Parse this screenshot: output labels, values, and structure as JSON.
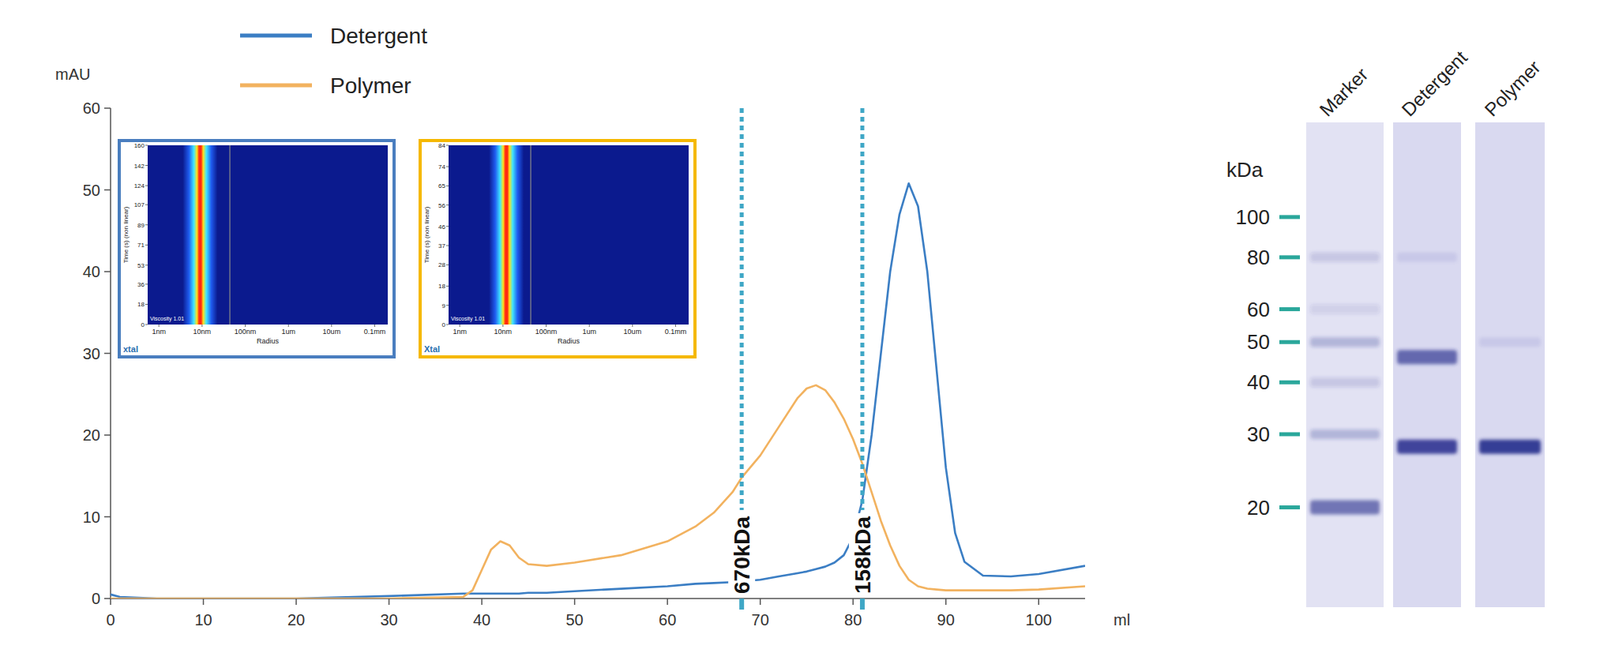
{
  "chart_data": {
    "type": "line",
    "x": [
      0,
      1,
      5,
      10,
      20,
      30,
      38,
      39,
      40,
      41,
      42,
      43,
      44,
      45,
      47,
      50,
      55,
      60,
      63,
      65,
      67,
      68,
      70,
      72,
      74,
      75,
      76,
      77,
      78,
      79,
      80,
      81,
      82,
      83,
      84,
      85,
      86,
      87,
      88,
      89,
      90,
      91,
      92,
      94,
      97,
      100,
      105
    ],
    "xlim": [
      0,
      105
    ],
    "xticks": [
      0,
      10,
      20,
      30,
      40,
      50,
      60,
      70,
      80,
      90,
      100
    ],
    "ylim": [
      0,
      60
    ],
    "yticks": [
      0,
      10,
      20,
      30,
      40,
      50,
      60
    ],
    "x_label": "ml",
    "y_label": "mAU",
    "legend": "top-left",
    "series": [
      {
        "name": "Detergent",
        "color": "#3b7ec4",
        "values": [
          0.5,
          0.2,
          0,
          0,
          0,
          0.3,
          0.6,
          0.6,
          0.6,
          0.6,
          0.6,
          0.6,
          0.6,
          0.7,
          0.7,
          0.9,
          1.2,
          1.5,
          1.8,
          1.9,
          2,
          2.1,
          2.3,
          2.7,
          3.1,
          3.3,
          3.6,
          3.9,
          4.4,
          5.3,
          7.5,
          12,
          20,
          30,
          40,
          47,
          50.8,
          48,
          40,
          28,
          16,
          8,
          4.5,
          2.8,
          2.7,
          3,
          4
        ]
      },
      {
        "name": "Polymer",
        "color": "#f2b25f",
        "values": [
          0,
          0,
          0,
          0,
          0,
          0,
          0.2,
          1,
          3.5,
          6,
          7,
          6.5,
          5,
          4.2,
          4,
          4.4,
          5.3,
          7,
          8.8,
          10.5,
          13,
          14.8,
          17.5,
          21,
          24.5,
          25.7,
          26.1,
          25.5,
          24,
          22,
          19.5,
          16.5,
          13,
          9.5,
          6.5,
          4,
          2.3,
          1.5,
          1.2,
          1.1,
          1,
          1,
          1,
          1,
          1,
          1.1,
          1.5
        ]
      }
    ],
    "annotations": [
      {
        "x": 68,
        "label": "670kDa",
        "color": "#3fa7c6"
      },
      {
        "x": 81,
        "label": "158kDa",
        "color": "#3fa7c6"
      }
    ]
  },
  "dls_insets": [
    {
      "color": "#4a7ebf",
      "y_label": "Time (s) (non linear)",
      "x_label": "Radius",
      "log": "x",
      "ylim": [
        0,
        160
      ],
      "yticks": [
        0,
        18,
        36,
        53,
        71,
        89,
        107,
        124,
        142,
        160
      ],
      "xlim": [
        0.55,
        200000
      ],
      "xticks": [
        {
          "value": 1,
          "label": "1nm"
        },
        {
          "value": 10,
          "label": "10nm"
        },
        {
          "value": 100,
          "label": "100nm"
        },
        {
          "value": 1000,
          "label": "1um"
        },
        {
          "value": 10000,
          "label": "10um"
        },
        {
          "value": 100000,
          "label": "0.1mm"
        }
      ],
      "peak_radius_nm": 9,
      "cutoff_radius_nm": 44,
      "note_text": "Viscosity 1.01",
      "logo": "xtal"
    },
    {
      "color": "#f5b800",
      "y_label": "Time (s) (non linear)",
      "x_label": "Radius",
      "log": "x",
      "ylim": [
        0,
        84
      ],
      "yticks": [
        0,
        9,
        18,
        28,
        37,
        46,
        56,
        65,
        74,
        84
      ],
      "xlim": [
        0.55,
        200000
      ],
      "xticks": [
        {
          "value": 1,
          "label": "1nm"
        },
        {
          "value": 10,
          "label": "10nm"
        },
        {
          "value": 100,
          "label": "100nm"
        },
        {
          "value": 1000,
          "label": "1um"
        },
        {
          "value": 10000,
          "label": "10um"
        },
        {
          "value": 100000,
          "label": "0.1mm"
        }
      ],
      "peak_radius_nm": 12,
      "cutoff_radius_nm": 44,
      "note_text": "Viscosity 1.01",
      "logo": "Xtal"
    }
  ],
  "gel": {
    "unit_label": "kDa",
    "log": "y",
    "ylim": [
      11.5,
      169
    ],
    "marker_kda": [
      100,
      80,
      60,
      50,
      40,
      30,
      20
    ],
    "color": "#2aa79b",
    "lanes": [
      {
        "label": "Marker",
        "bands": [
          {
            "kda": 80,
            "intensity": 0.15
          },
          {
            "kda": 60,
            "intensity": 0.1
          },
          {
            "kda": 50,
            "intensity": 0.25
          },
          {
            "kda": 40,
            "intensity": 0.15
          },
          {
            "kda": 30,
            "intensity": 0.25
          },
          {
            "kda": 20,
            "intensity": 0.6
          }
        ]
      },
      {
        "label": "Detergent",
        "bands": [
          {
            "kda": 80,
            "intensity": 0.08
          },
          {
            "kda": 46,
            "intensity": 0.65
          },
          {
            "kda": 28,
            "intensity": 0.85
          }
        ]
      },
      {
        "label": "Polymer",
        "bands": [
          {
            "kda": 50,
            "intensity": 0.08
          },
          {
            "kda": 28,
            "intensity": 0.9
          }
        ]
      }
    ]
  }
}
